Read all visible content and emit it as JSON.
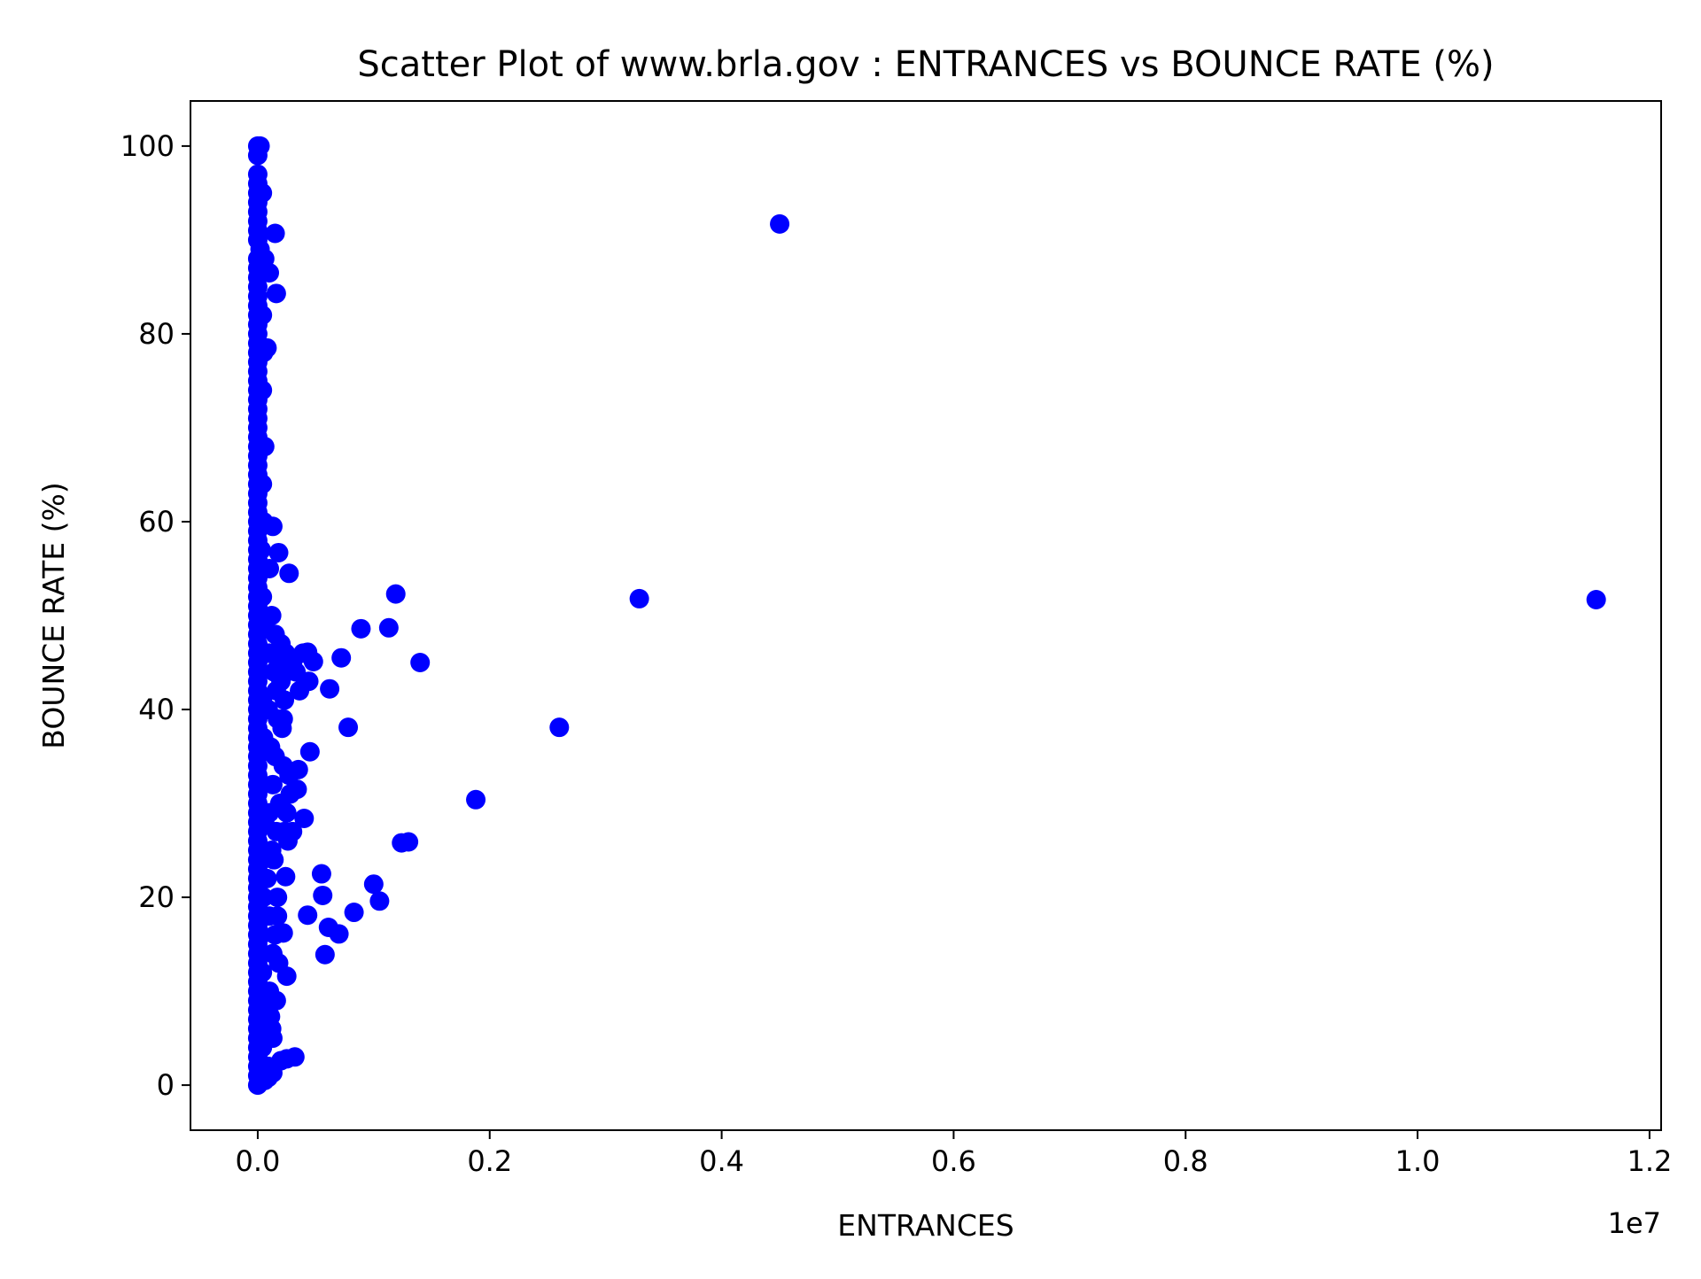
{
  "chart_data": {
    "type": "scatter",
    "title": "Scatter Plot of www.brla.gov : ENTRANCES vs BOUNCE RATE (%)",
    "xlabel": "ENTRANCES",
    "ylabel": "BOUNCE RATE (%)",
    "x_offset_label": "1e7",
    "x_tick_labels": [
      "0.0",
      "0.2",
      "0.4",
      "0.6",
      "0.8",
      "1.0",
      "1.2"
    ],
    "y_tick_labels": [
      "0",
      "20",
      "40",
      "60",
      "80",
      "100"
    ],
    "xlim": [
      -580000,
      12100000
    ],
    "ylim": [
      -4.8,
      104.8
    ],
    "xticks": [
      0,
      2000000,
      4000000,
      6000000,
      8000000,
      10000000,
      12000000
    ],
    "yticks": [
      0,
      20,
      40,
      60,
      80,
      100
    ],
    "grid": false,
    "legend": "none",
    "marker_color": "#0000ff",
    "series": [
      {
        "points": [
          [
            0,
            100
          ],
          [
            20000,
            100
          ],
          [
            0,
            99
          ],
          [
            0,
            97
          ],
          [
            0,
            96
          ],
          [
            0,
            95
          ],
          [
            0,
            94
          ],
          [
            0,
            93
          ],
          [
            0,
            92
          ],
          [
            0,
            91
          ],
          [
            0,
            90
          ],
          [
            20000,
            89
          ],
          [
            0,
            88
          ],
          [
            0,
            87
          ],
          [
            0,
            86
          ],
          [
            0,
            85
          ],
          [
            0,
            84
          ],
          [
            0,
            83
          ],
          [
            0,
            82
          ],
          [
            0,
            81
          ],
          [
            0,
            80
          ],
          [
            0,
            79
          ],
          [
            0,
            78
          ],
          [
            0,
            77
          ],
          [
            0,
            76
          ],
          [
            0,
            75
          ],
          [
            0,
            74
          ],
          [
            0,
            73
          ],
          [
            0,
            72
          ],
          [
            0,
            71
          ],
          [
            0,
            70
          ],
          [
            0,
            69
          ],
          [
            0,
            68
          ],
          [
            0,
            67
          ],
          [
            0,
            66
          ],
          [
            0,
            65
          ],
          [
            0,
            64
          ],
          [
            0,
            63
          ],
          [
            0,
            62
          ],
          [
            0,
            61
          ],
          [
            0,
            60
          ],
          [
            0,
            59
          ],
          [
            0,
            58
          ],
          [
            0,
            57
          ],
          [
            0,
            56
          ],
          [
            0,
            55
          ],
          [
            0,
            54
          ],
          [
            0,
            53
          ],
          [
            0,
            52
          ],
          [
            0,
            51
          ],
          [
            0,
            50
          ],
          [
            0,
            49
          ],
          [
            0,
            48
          ],
          [
            0,
            47
          ],
          [
            0,
            46
          ],
          [
            0,
            45
          ],
          [
            0,
            44
          ],
          [
            0,
            43
          ],
          [
            0,
            42
          ],
          [
            0,
            41
          ],
          [
            0,
            40
          ],
          [
            0,
            39
          ],
          [
            0,
            38
          ],
          [
            0,
            37
          ],
          [
            0,
            36
          ],
          [
            0,
            35
          ],
          [
            0,
            34
          ],
          [
            0,
            33
          ],
          [
            0,
            32
          ],
          [
            0,
            31
          ],
          [
            0,
            30
          ],
          [
            0,
            29
          ],
          [
            0,
            28
          ],
          [
            0,
            27
          ],
          [
            0,
            26
          ],
          [
            0,
            25
          ],
          [
            0,
            24
          ],
          [
            0,
            23
          ],
          [
            0,
            22
          ],
          [
            0,
            21
          ],
          [
            0,
            20
          ],
          [
            0,
            19
          ],
          [
            0,
            18
          ],
          [
            0,
            17
          ],
          [
            0,
            16
          ],
          [
            0,
            15
          ],
          [
            0,
            14
          ],
          [
            0,
            13
          ],
          [
            0,
            12
          ],
          [
            0,
            11
          ],
          [
            0,
            10
          ],
          [
            0,
            9
          ],
          [
            0,
            8
          ],
          [
            0,
            7
          ],
          [
            0,
            6
          ],
          [
            0,
            5
          ],
          [
            0,
            4
          ],
          [
            0,
            3
          ],
          [
            0,
            2
          ],
          [
            0,
            1
          ],
          [
            0,
            0
          ],
          [
            40000,
            95
          ],
          [
            60000,
            88
          ],
          [
            40000,
            82
          ],
          [
            50000,
            78
          ],
          [
            40000,
            74
          ],
          [
            60000,
            68
          ],
          [
            40000,
            64
          ],
          [
            50000,
            60
          ],
          [
            30000,
            57
          ],
          [
            40000,
            52
          ],
          [
            60000,
            49
          ],
          [
            80000,
            46
          ],
          [
            40000,
            41
          ],
          [
            50000,
            37
          ],
          [
            40000,
            32
          ],
          [
            60000,
            28
          ],
          [
            40000,
            24
          ],
          [
            50000,
            20
          ],
          [
            30000,
            16
          ],
          [
            40000,
            12
          ],
          [
            50000,
            8
          ],
          [
            40000,
            4
          ],
          [
            30000,
            1
          ],
          [
            60000,
            0.5
          ],
          [
            100000,
            55
          ],
          [
            120000,
            50
          ],
          [
            100000,
            46
          ],
          [
            140000,
            44
          ],
          [
            90000,
            40
          ],
          [
            110000,
            36
          ],
          [
            130000,
            32
          ],
          [
            100000,
            29
          ],
          [
            120000,
            25
          ],
          [
            80000,
            22
          ],
          [
            100000,
            18
          ],
          [
            130000,
            14
          ],
          [
            100000,
            10
          ],
          [
            120000,
            6
          ],
          [
            90000,
            2
          ],
          [
            150000,
            48
          ],
          [
            180000,
            45
          ],
          [
            160000,
            42
          ],
          [
            200000,
            47
          ],
          [
            170000,
            39
          ],
          [
            150000,
            35
          ],
          [
            190000,
            30
          ],
          [
            160000,
            27
          ],
          [
            140000,
            24
          ],
          [
            170000,
            20
          ],
          [
            150000,
            16
          ],
          [
            180000,
            13
          ],
          [
            160000,
            9
          ],
          [
            130000,
            5
          ],
          [
            200000,
            43
          ],
          [
            230000,
            41
          ],
          [
            210000,
            38
          ],
          [
            240000,
            46
          ],
          [
            250000,
            44
          ],
          [
            220000,
            34
          ],
          [
            270000,
            33
          ],
          [
            250000,
            29
          ],
          [
            230000,
            27
          ],
          [
            280000,
            31
          ],
          [
            300000,
            45
          ],
          [
            330000,
            44
          ],
          [
            360000,
            42
          ],
          [
            390000,
            46
          ],
          [
            4500000,
            91.7
          ],
          [
            150000,
            90.7
          ],
          [
            100000,
            86.5
          ],
          [
            160000,
            84.3
          ],
          [
            80000,
            78.5
          ],
          [
            130000,
            59.5
          ],
          [
            180000,
            56.7
          ],
          [
            270000,
            54.5
          ],
          [
            1190000,
            52.3
          ],
          [
            3290000,
            51.8
          ],
          [
            11540000,
            51.7
          ],
          [
            890000,
            48.6
          ],
          [
            1130000,
            48.7
          ],
          [
            430000,
            46.1
          ],
          [
            1400000,
            45.0
          ],
          [
            720000,
            45.5
          ],
          [
            480000,
            45.1
          ],
          [
            440000,
            43.0
          ],
          [
            620000,
            42.2
          ],
          [
            780000,
            38.1
          ],
          [
            2600000,
            38.1
          ],
          [
            220000,
            39.0
          ],
          [
            450000,
            35.5
          ],
          [
            350000,
            33.6
          ],
          [
            340000,
            31.5
          ],
          [
            1880000,
            30.4
          ],
          [
            400000,
            28.4
          ],
          [
            300000,
            27.0
          ],
          [
            260000,
            26.0
          ],
          [
            1240000,
            25.8
          ],
          [
            1300000,
            25.9
          ],
          [
            240000,
            22.2
          ],
          [
            550000,
            22.5
          ],
          [
            1000000,
            21.4
          ],
          [
            560000,
            20.2
          ],
          [
            1050000,
            19.6
          ],
          [
            830000,
            18.4
          ],
          [
            430000,
            18.1
          ],
          [
            170000,
            18.0
          ],
          [
            610000,
            16.8
          ],
          [
            700000,
            16.1
          ],
          [
            220000,
            16.2
          ],
          [
            580000,
            13.9
          ],
          [
            250000,
            11.6
          ],
          [
            110000,
            7.3
          ],
          [
            320000,
            3.0
          ],
          [
            250000,
            2.8
          ],
          [
            200000,
            2.6
          ],
          [
            130000,
            1.3
          ],
          [
            90000,
            0.8
          ]
        ]
      }
    ]
  }
}
